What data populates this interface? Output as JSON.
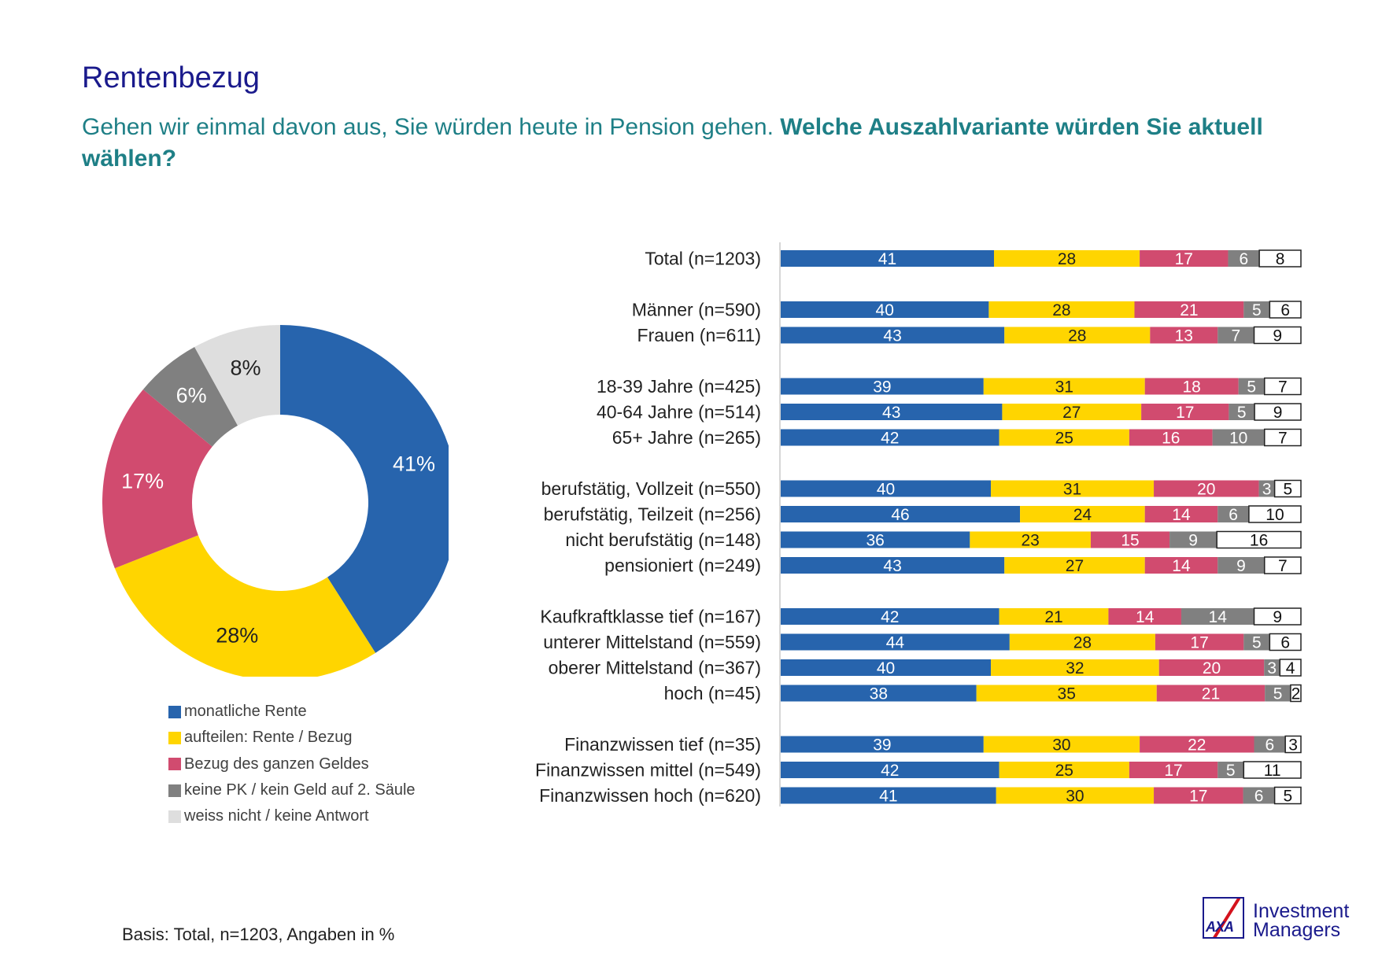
{
  "header": {
    "title": "Rentenbezug",
    "question_normal": "Gehen wir einmal davon aus, Sie würden heute in Pension gehen. ",
    "question_bold": "Welche Auszahlvariante würden Sie aktuell wählen?"
  },
  "footnote": "Basis: Total, n=1203, Angaben in %",
  "logo": {
    "mark": "AXA",
    "line1": "Investment",
    "line2": "Managers"
  },
  "colors": {
    "monatlich": "#2764ad",
    "aufteilen": "#ffd500",
    "bezug": "#d14b6f",
    "keine_pk": "#808080",
    "weiss_nicht": "#dedede",
    "white_segment": "#ffffff"
  },
  "chart_data": [
    {
      "type": "pie",
      "title": "",
      "labels": [
        "monatliche Rente",
        "aufteilen: Rente / Bezug",
        "Bezug des ganzen Geldes",
        "keine PK / kein Geld auf 2. Säule",
        "weiss nicht / keine Antwort"
      ],
      "values": [
        41,
        28,
        17,
        6,
        8
      ],
      "data_labels": [
        "41%",
        "28%",
        "17%",
        "6%",
        "8%"
      ],
      "donut": true,
      "legend_position": "bottom"
    },
    {
      "type": "bar",
      "orientation": "horizontal",
      "stacked": true,
      "xlim": [
        0,
        100
      ],
      "series_names": [
        "monatliche Rente",
        "aufteilen: Rente / Bezug",
        "Bezug des ganzen Geldes",
        "keine PK / kein Geld auf 2. Säule",
        "weiss nicht / keine Antwort"
      ],
      "rows": [
        {
          "label": "Total (n=1203)",
          "values": [
            41,
            28,
            17,
            6,
            8
          ]
        },
        {
          "label": "Männer (n=590)",
          "values": [
            40,
            28,
            21,
            5,
            6
          ]
        },
        {
          "label": "Frauen (n=611)",
          "values": [
            43,
            28,
            13,
            7,
            9
          ]
        },
        {
          "label": "18-39 Jahre (n=425)",
          "values": [
            39,
            31,
            18,
            5,
            7
          ]
        },
        {
          "label": "40-64 Jahre (n=514)",
          "values": [
            43,
            27,
            17,
            5,
            9
          ]
        },
        {
          "label": "65+ Jahre (n=265)",
          "values": [
            42,
            25,
            16,
            10,
            7
          ]
        },
        {
          "label": "berufstätig, Vollzeit (n=550)",
          "values": [
            40,
            31,
            20,
            3,
            5
          ]
        },
        {
          "label": "berufstätig, Teilzeit (n=256)",
          "values": [
            46,
            24,
            14,
            6,
            10
          ]
        },
        {
          "label": "nicht berufstätig (n=148)",
          "values": [
            36,
            23,
            15,
            9,
            16
          ]
        },
        {
          "label": "pensioniert (n=249)",
          "values": [
            43,
            27,
            14,
            9,
            7
          ]
        },
        {
          "label": "Kaufkraftklasse tief (n=167)",
          "values": [
            42,
            21,
            14,
            14,
            9
          ]
        },
        {
          "label": "unterer Mittelstand (n=559)",
          "values": [
            44,
            28,
            17,
            5,
            6
          ]
        },
        {
          "label": "oberer Mittelstand (n=367)",
          "values": [
            40,
            32,
            20,
            3,
            4
          ]
        },
        {
          "label": "hoch (n=45)",
          "values": [
            38,
            35,
            21,
            5,
            2
          ]
        },
        {
          "label": "Finanzwissen tief (n=35)",
          "values": [
            39,
            30,
            22,
            6,
            3
          ]
        },
        {
          "label": "Finanzwissen mittel (n=549)",
          "values": [
            42,
            25,
            17,
            5,
            11
          ]
        },
        {
          "label": "Finanzwissen hoch (n=620)",
          "values": [
            41,
            30,
            17,
            6,
            5
          ]
        }
      ]
    }
  ]
}
